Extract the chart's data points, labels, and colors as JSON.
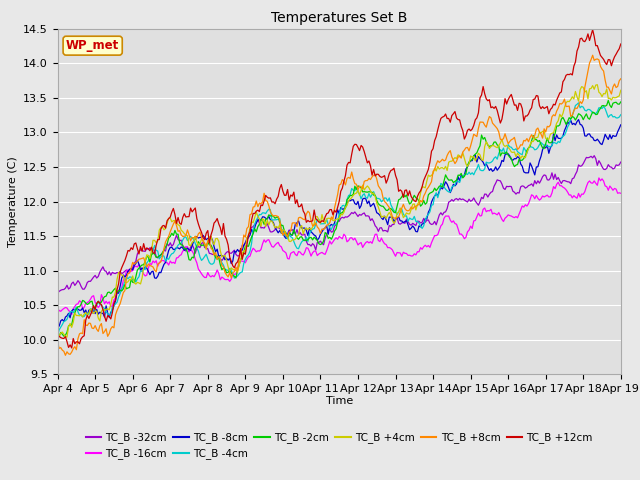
{
  "title": "Temperatures Set B",
  "xlabel": "Time",
  "ylabel": "Temperature (C)",
  "ylim": [
    9.5,
    14.5
  ],
  "xlim": [
    0,
    360
  ],
  "background_color": "#e8e8e8",
  "plot_bg_color": "#e0e0e0",
  "grid_color": "#ffffff",
  "series": [
    {
      "label": "TC_B -32cm",
      "color": "#9900cc",
      "start": 10.65,
      "end": 12.5
    },
    {
      "label": "TC_B -16cm",
      "color": "#ff00ff",
      "start": 10.4,
      "end": 12.2
    },
    {
      "label": "TC_B -8cm",
      "color": "#0000cc",
      "start": 10.2,
      "end": 13.15
    },
    {
      "label": "TC_B -4cm",
      "color": "#00cccc",
      "start": 10.1,
      "end": 13.3
    },
    {
      "label": "TC_B -2cm",
      "color": "#00cc00",
      "start": 10.1,
      "end": 13.4
    },
    {
      "label": "TC_B +4cm",
      "color": "#cccc00",
      "start": 10.05,
      "end": 13.55
    },
    {
      "label": "TC_B +8cm",
      "color": "#ff8800",
      "start": 9.9,
      "end": 13.8
    },
    {
      "label": "TC_B +12cm",
      "color": "#cc0000",
      "start": 9.85,
      "end": 14.2
    }
  ],
  "xtick_labels": [
    "Apr 4",
    "Apr 5",
    "Apr 6",
    "Apr 7",
    "Apr 8",
    "Apr 9",
    "Apr 10",
    "Apr 11",
    "Apr 12",
    "Apr 13",
    "Apr 14",
    "Apr 15",
    "Apr 16",
    "Apr 17",
    "Apr 18",
    "Apr 19"
  ],
  "xtick_positions": [
    0,
    24,
    48,
    72,
    96,
    120,
    144,
    168,
    192,
    216,
    240,
    264,
    288,
    312,
    336,
    360
  ],
  "ytick_values": [
    9.5,
    10.0,
    10.5,
    11.0,
    11.5,
    12.0,
    12.5,
    13.0,
    13.5,
    14.0,
    14.5
  ],
  "wp_met_box_color": "#ffffcc",
  "wp_met_border_color": "#cc8800",
  "wp_met_text_color": "#cc0000"
}
